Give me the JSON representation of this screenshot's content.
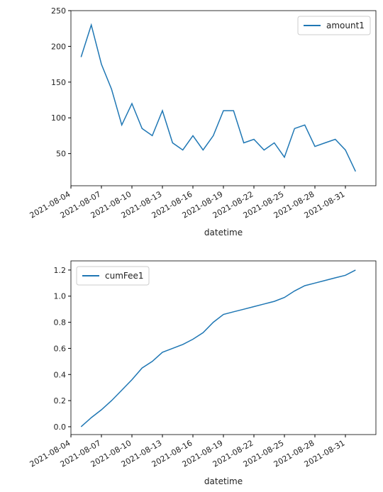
{
  "chart_data": [
    {
      "type": "line",
      "xlabel": "datetime",
      "legend": "upper right",
      "x": [
        "2021-08-05",
        "2021-08-06",
        "2021-08-07",
        "2021-08-08",
        "2021-08-09",
        "2021-08-10",
        "2021-08-11",
        "2021-08-12",
        "2021-08-13",
        "2021-08-14",
        "2021-08-15",
        "2021-08-16",
        "2021-08-17",
        "2021-08-18",
        "2021-08-19",
        "2021-08-20",
        "2021-08-21",
        "2021-08-22",
        "2021-08-23",
        "2021-08-24",
        "2021-08-25",
        "2021-08-26",
        "2021-08-27",
        "2021-08-28",
        "2021-08-29",
        "2021-08-30",
        "2021-08-31",
        "2021-09-01"
      ],
      "series": [
        {
          "name": "amount1",
          "color": "#1f77b4",
          "values": [
            185,
            230,
            175,
            140,
            90,
            120,
            85,
            75,
            110,
            65,
            55,
            75,
            55,
            75,
            110,
            110,
            65,
            70,
            55,
            65,
            45,
            85,
            90,
            60,
            65,
            70,
            55,
            25
          ]
        }
      ],
      "xlim": [
        "2021-08-04",
        "2021-09-03"
      ],
      "xticks": [
        "2021-08-04",
        "2021-08-07",
        "2021-08-10",
        "2021-08-13",
        "2021-08-16",
        "2021-08-19",
        "2021-08-22",
        "2021-08-25",
        "2021-08-28",
        "2021-08-31"
      ],
      "ylim": [
        5,
        250
      ],
      "yticks": [
        50,
        100,
        150,
        200,
        250
      ]
    },
    {
      "type": "line",
      "xlabel": "datetime",
      "legend": "upper left",
      "x": [
        "2021-08-05",
        "2021-08-06",
        "2021-08-07",
        "2021-08-08",
        "2021-08-09",
        "2021-08-10",
        "2021-08-11",
        "2021-08-12",
        "2021-08-13",
        "2021-08-14",
        "2021-08-15",
        "2021-08-16",
        "2021-08-17",
        "2021-08-18",
        "2021-08-19",
        "2021-08-20",
        "2021-08-21",
        "2021-08-22",
        "2021-08-23",
        "2021-08-24",
        "2021-08-25",
        "2021-08-26",
        "2021-08-27",
        "2021-08-28",
        "2021-08-29",
        "2021-08-30",
        "2021-08-31",
        "2021-09-01"
      ],
      "series": [
        {
          "name": "cumFee1",
          "color": "#1f77b4",
          "values": [
            0.0,
            0.07,
            0.13,
            0.2,
            0.28,
            0.36,
            0.45,
            0.5,
            0.57,
            0.6,
            0.63,
            0.67,
            0.72,
            0.8,
            0.86,
            0.88,
            0.9,
            0.92,
            0.94,
            0.96,
            0.99,
            1.04,
            1.08,
            1.1,
            1.12,
            1.14,
            1.16,
            1.2
          ]
        }
      ],
      "xlim": [
        "2021-08-04",
        "2021-09-03"
      ],
      "xticks": [
        "2021-08-04",
        "2021-08-07",
        "2021-08-10",
        "2021-08-13",
        "2021-08-16",
        "2021-08-19",
        "2021-08-22",
        "2021-08-25",
        "2021-08-28",
        "2021-08-31"
      ],
      "ylim": [
        -0.06,
        1.27
      ],
      "yticks": [
        {
          "value": 0,
          "label": "0.0"
        },
        0.2,
        0.4,
        0.6,
        0.8,
        {
          "value": 1,
          "label": "1.0"
        },
        1.2
      ]
    }
  ]
}
